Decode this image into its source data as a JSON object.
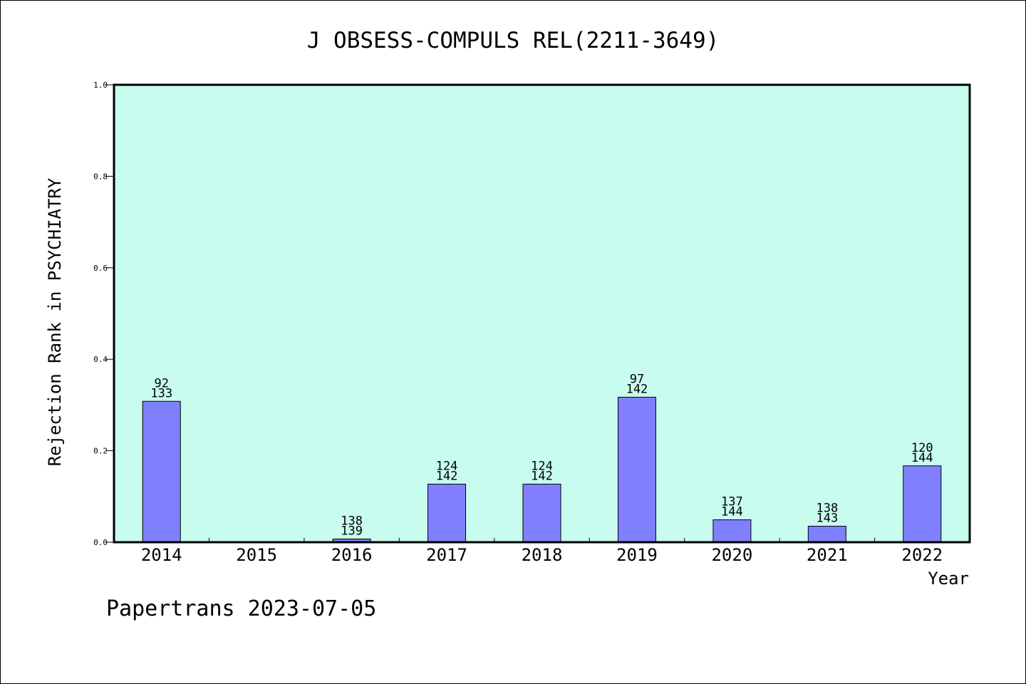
{
  "chart_data": {
    "type": "bar",
    "title": "J OBSESS-COMPULS REL(2211-3649)",
    "xlabel": "Year",
    "ylabel": "Rejection Rank in PSYCHIATRY",
    "ylim": [
      0,
      1.0
    ],
    "yticks": [
      "0.0",
      "0.2",
      "0.4",
      "0.6",
      "0.8",
      "1.0"
    ],
    "categories": [
      "2014",
      "2015",
      "2016",
      "2017",
      "2018",
      "2019",
      "2020",
      "2021",
      "2022"
    ],
    "values": [
      0.308,
      null,
      0.007,
      0.127,
      0.127,
      0.317,
      0.049,
      0.035,
      0.167
    ],
    "bar_labels": [
      [
        "92",
        "133"
      ],
      null,
      [
        "138",
        "139"
      ],
      [
        "124",
        "142"
      ],
      [
        "124",
        "142"
      ],
      [
        "97",
        "142"
      ],
      [
        "137",
        "144"
      ],
      [
        "138",
        "143"
      ],
      [
        "120",
        "144"
      ]
    ],
    "grid": false,
    "colors": {
      "plot_background": "#c8fcee",
      "bar_fill": "#8080ff",
      "bar_stroke": "#000000"
    }
  },
  "footer": {
    "credit": "Papertrans 2023-07-05"
  }
}
